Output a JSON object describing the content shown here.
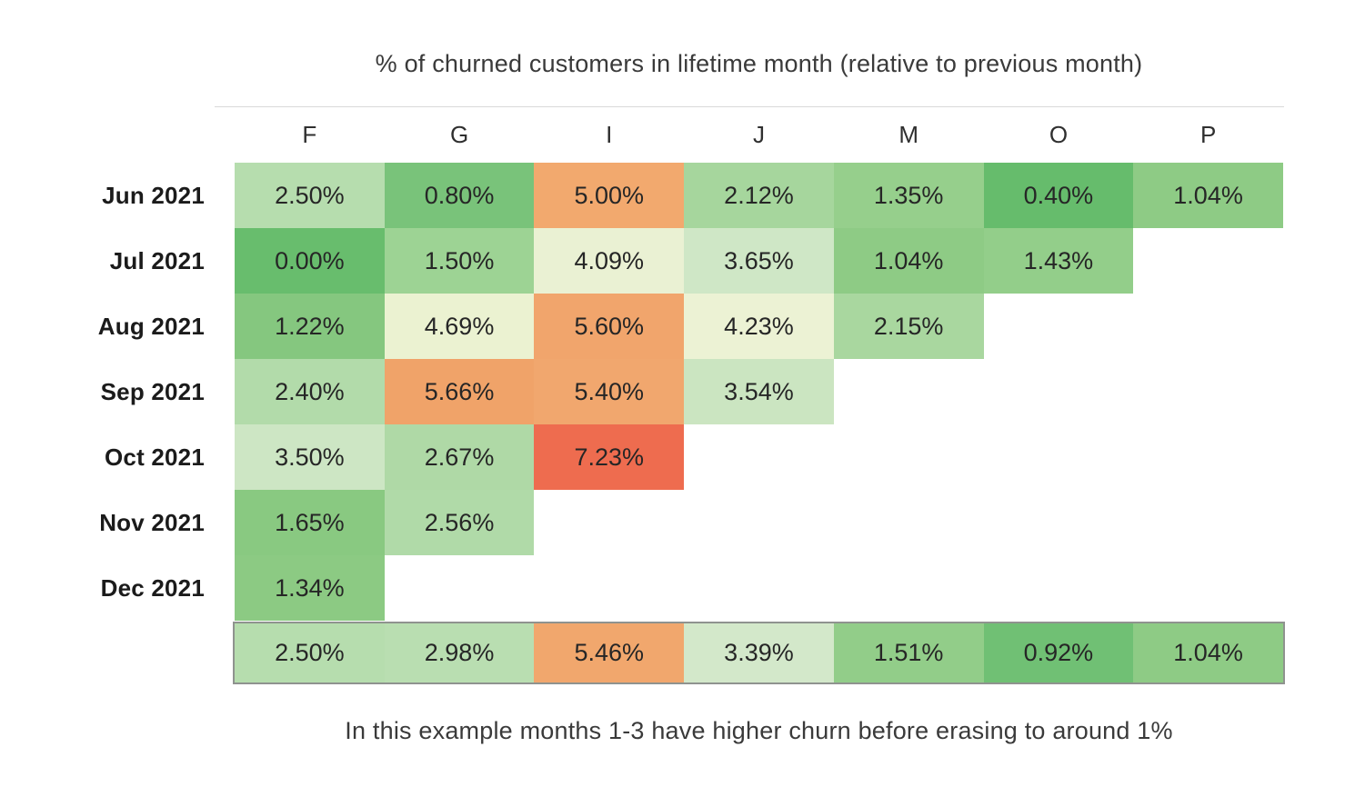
{
  "title": "% of churned customers in lifetime month (relative to previous month)",
  "caption": "In this example months 1-3 have higher churn before erasing to around 1%",
  "columns": [
    "F",
    "G",
    "I",
    "J",
    "M",
    "O",
    "P"
  ],
  "rows": [
    {
      "label": "Jun 2021",
      "cells": [
        {
          "value": "2.50%",
          "color": "#b6ddae"
        },
        {
          "value": "0.80%",
          "color": "#79c37a"
        },
        {
          "value": "5.00%",
          "color": "#f2a96e"
        },
        {
          "value": "2.12%",
          "color": "#a6d69d"
        },
        {
          "value": "1.35%",
          "color": "#96cf8c"
        },
        {
          "value": "0.40%",
          "color": "#66bc6c"
        },
        {
          "value": "1.04%",
          "color": "#8ecb85"
        }
      ]
    },
    {
      "label": "Jul 2021",
      "cells": [
        {
          "value": "0.00%",
          "color": "#68bd6d"
        },
        {
          "value": "1.50%",
          "color": "#9dd394"
        },
        {
          "value": "4.09%",
          "color": "#eaf1d3"
        },
        {
          "value": "3.65%",
          "color": "#cfe7c6"
        },
        {
          "value": "1.04%",
          "color": "#8ecb85"
        },
        {
          "value": "1.43%",
          "color": "#93ce8a"
        }
      ]
    },
    {
      "label": "Aug 2021",
      "cells": [
        {
          "value": "1.22%",
          "color": "#85c77f"
        },
        {
          "value": "4.69%",
          "color": "#ebf2d1"
        },
        {
          "value": "5.60%",
          "color": "#f1a56c"
        },
        {
          "value": "4.23%",
          "color": "#ecf2d4"
        },
        {
          "value": "2.15%",
          "color": "#a9d79f"
        }
      ]
    },
    {
      "label": "Sep 2021",
      "cells": [
        {
          "value": "2.40%",
          "color": "#b2dbaa"
        },
        {
          "value": "5.66%",
          "color": "#f0a369"
        },
        {
          "value": "5.40%",
          "color": "#f1a76e"
        },
        {
          "value": "3.54%",
          "color": "#cbe5c1"
        }
      ]
    },
    {
      "label": "Oct 2021",
      "cells": [
        {
          "value": "3.50%",
          "color": "#cde6c4"
        },
        {
          "value": "2.67%",
          "color": "#afd9a6"
        },
        {
          "value": "7.23%",
          "color": "#ee6c4f"
        }
      ]
    },
    {
      "label": "Nov 2021",
      "cells": [
        {
          "value": "1.65%",
          "color": "#89c981"
        },
        {
          "value": "2.56%",
          "color": "#b0daa8"
        }
      ]
    },
    {
      "label": "Dec 2021",
      "cells": [
        {
          "value": "1.34%",
          "color": "#8cca83"
        }
      ]
    }
  ],
  "summary": [
    {
      "value": "2.50%",
      "color": "#b6ddae"
    },
    {
      "value": "2.98%",
      "color": "#b9deb1"
    },
    {
      "value": "5.46%",
      "color": "#f1a76d"
    },
    {
      "value": "3.39%",
      "color": "#d3e8ca"
    },
    {
      "value": "1.51%",
      "color": "#92cd89"
    },
    {
      "value": "0.92%",
      "color": "#70c074"
    },
    {
      "value": "1.04%",
      "color": "#8ecb85"
    }
  ],
  "chart_data": {
    "type": "heatmap",
    "title": "% of churned customers in lifetime month (relative to previous month)",
    "x_labels": [
      "F",
      "G",
      "I",
      "J",
      "M",
      "O",
      "P"
    ],
    "y_labels": [
      "Jun 2021",
      "Jul 2021",
      "Aug 2021",
      "Sep 2021",
      "Oct 2021",
      "Nov 2021",
      "Dec 2021"
    ],
    "values_pct": [
      [
        2.5,
        0.8,
        5.0,
        2.12,
        1.35,
        0.4,
        1.04
      ],
      [
        0.0,
        1.5,
        4.09,
        3.65,
        1.04,
        1.43,
        null
      ],
      [
        1.22,
        4.69,
        5.6,
        4.23,
        2.15,
        null,
        null
      ],
      [
        2.4,
        5.66,
        5.4,
        3.54,
        null,
        null,
        null
      ],
      [
        3.5,
        2.67,
        7.23,
        null,
        null,
        null,
        null
      ],
      [
        1.65,
        2.56,
        null,
        null,
        null,
        null,
        null
      ],
      [
        1.34,
        null,
        null,
        null,
        null,
        null,
        null
      ]
    ],
    "summary_row_pct": [
      2.5,
      2.98,
      5.46,
      3.39,
      1.51,
      0.92,
      1.04
    ],
    "value_range": [
      0.0,
      7.23
    ],
    "colorscale": "green-low to red-high (green-yellow-orange-red)",
    "annotation": "In this example months 1-3 have higher churn before erasing to around 1%",
    "grid": false,
    "legend": false
  }
}
